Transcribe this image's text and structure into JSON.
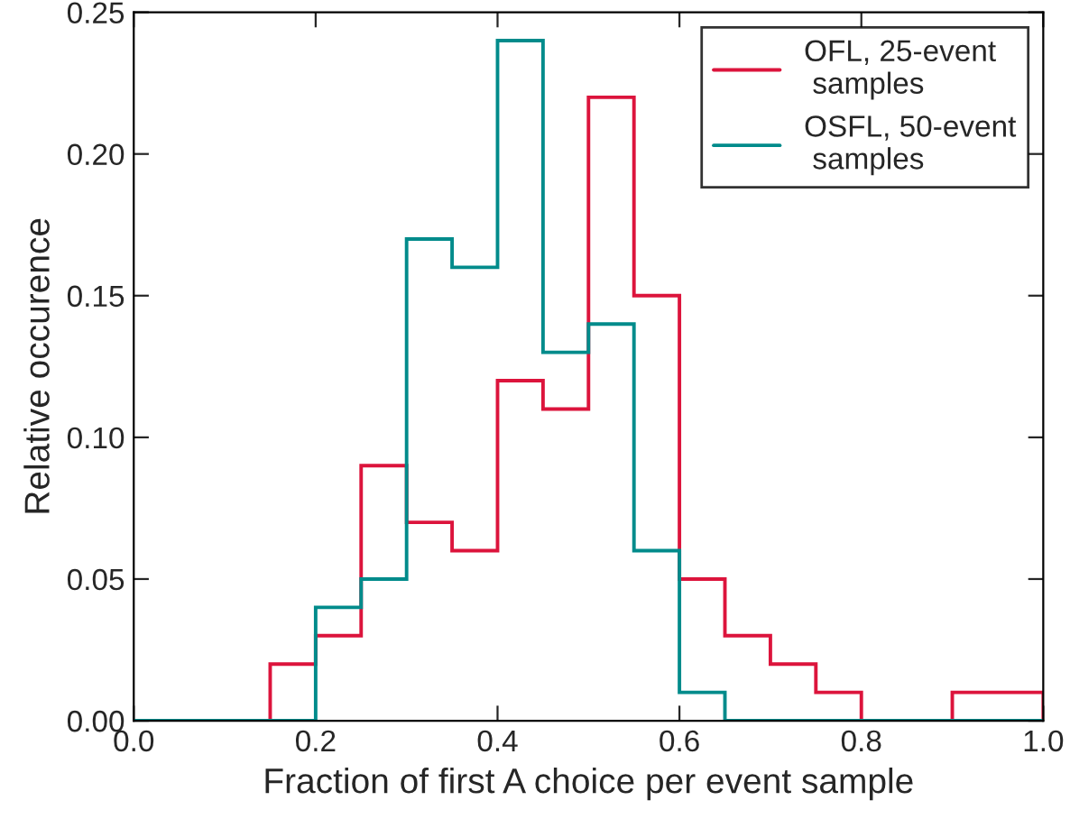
{
  "chart_data": {
    "type": "histogram",
    "xlabel": "Fraction of first A choice per event sample",
    "ylabel": "Relative occurence",
    "bins": [
      0.0,
      0.05,
      0.1,
      0.15,
      0.2,
      0.25,
      0.3,
      0.35,
      0.4,
      0.45,
      0.5,
      0.55,
      0.6,
      0.65,
      0.7,
      0.75,
      0.8,
      0.85,
      0.9,
      0.95,
      1.0
    ],
    "series": [
      {
        "name": "OFL, 25-event\n samples",
        "color": "#dc143c",
        "values": [
          0,
          0,
          0,
          0.02,
          0.03,
          0.09,
          0.07,
          0.06,
          0.12,
          0.11,
          0.22,
          0.15,
          0.05,
          0.03,
          0.02,
          0.01,
          0,
          0,
          0.01,
          0.01
        ]
      },
      {
        "name": "OSFL, 50-event\n samples",
        "color": "#008b8b",
        "values": [
          0,
          0,
          0,
          0,
          0.04,
          0.05,
          0.17,
          0.16,
          0.24,
          0.13,
          0.14,
          0.06,
          0.01,
          0,
          0,
          0,
          0,
          0,
          0,
          0
        ]
      }
    ],
    "xlim": [
      0.0,
      1.0
    ],
    "xticks": [
      {
        "value": 0.0,
        "label": "0.0"
      },
      {
        "value": 0.2,
        "label": "0.2"
      },
      {
        "value": 0.4,
        "label": "0.4"
      },
      {
        "value": 0.6,
        "label": "0.6"
      },
      {
        "value": 0.8,
        "label": "0.8"
      },
      {
        "value": 1.0,
        "label": "1.0"
      }
    ],
    "ylim": [
      0.0,
      0.25
    ],
    "yticks": [
      {
        "value": 0.0,
        "label": "0.00"
      },
      {
        "value": 0.05,
        "label": "0.05"
      },
      {
        "value": 0.1,
        "label": "0.10"
      },
      {
        "value": 0.15,
        "label": "0.15"
      },
      {
        "value": 0.2,
        "label": "0.20"
      },
      {
        "value": 0.25,
        "label": "0.25"
      }
    ],
    "grid": false,
    "legend": "top right"
  }
}
